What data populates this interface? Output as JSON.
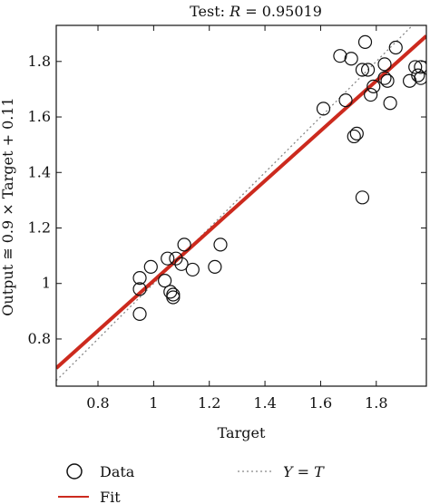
{
  "chart_data": {
    "type": "scatter",
    "title_prefix": "Test: ",
    "title_var": "R",
    "title_value": " = 0.95019",
    "xlabel": "Target",
    "ylabel": "Output ≅ 0.9 × Target + 0.11",
    "xlim": [
      0.65,
      1.98
    ],
    "ylim": [
      0.63,
      1.93
    ],
    "x_ticks": [
      0.8,
      1,
      1.2,
      1.4,
      1.6,
      1.8
    ],
    "x_tick_labels": [
      "0.8",
      "1",
      "1.2",
      "1.4",
      "1.6",
      "1.8"
    ],
    "y_ticks": [
      0.8,
      1,
      1.2,
      1.4,
      1.6,
      1.8
    ],
    "y_tick_labels": [
      "0.8",
      "1",
      "1.2",
      "1.4",
      "1.6",
      "1.8"
    ],
    "grid": false,
    "legend_position": "bottom",
    "legend": {
      "data_label": "Data",
      "fit_label": "Fit",
      "identity_var_y": "Y",
      "identity_eq": " = ",
      "identity_var_t": "T"
    },
    "series": [
      {
        "name": "Data",
        "kind": "scatter",
        "x": [
          0.95,
          0.95,
          0.95,
          0.99,
          1.04,
          1.05,
          1.06,
          1.07,
          1.07,
          1.08,
          1.1,
          1.11,
          1.14,
          1.22,
          1.24,
          1.61,
          1.67,
          1.69,
          1.71,
          1.72,
          1.73,
          1.75,
          1.75,
          1.76,
          1.77,
          1.78,
          1.79,
          1.83,
          1.83,
          1.84,
          1.85,
          1.87,
          1.92,
          1.94,
          1.95,
          1.96,
          1.96
        ],
        "y": [
          1.02,
          0.98,
          0.89,
          1.06,
          1.01,
          1.09,
          0.97,
          0.95,
          0.96,
          1.09,
          1.07,
          1.14,
          1.05,
          1.06,
          1.14,
          1.63,
          1.82,
          1.66,
          1.81,
          1.53,
          1.54,
          1.77,
          1.31,
          1.87,
          1.77,
          1.68,
          1.71,
          1.79,
          1.74,
          1.73,
          1.65,
          1.85,
          1.73,
          1.78,
          1.75,
          1.78,
          1.74
        ]
      },
      {
        "name": "Fit",
        "kind": "line",
        "slope": 0.9,
        "intercept": 0.11,
        "color": "#cc2a1e"
      },
      {
        "name": "Y = T",
        "kind": "dotted-line",
        "color": "#888888"
      }
    ]
  }
}
